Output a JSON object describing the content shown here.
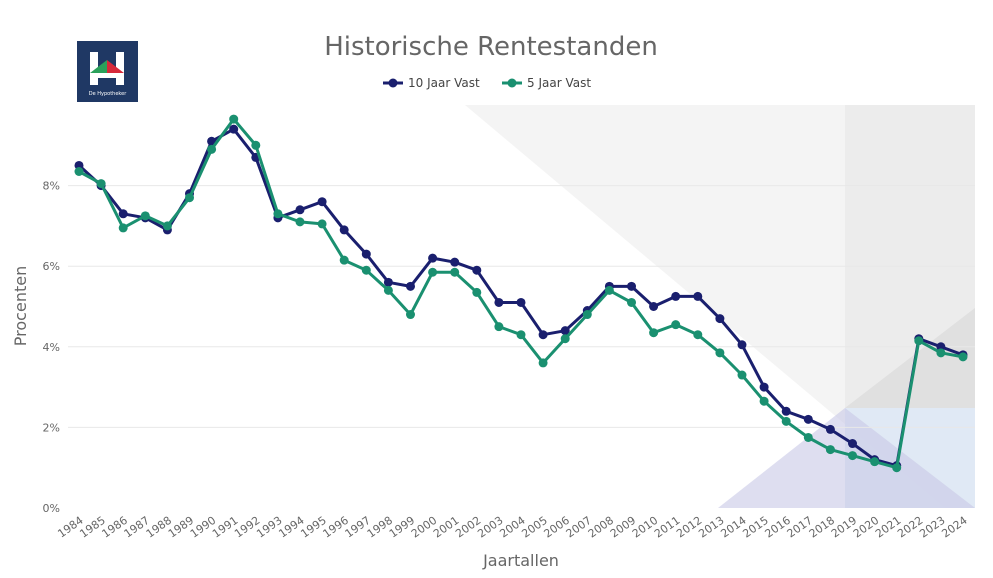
{
  "logo": {
    "caption": "De Hypotheker",
    "background": "#1f3864"
  },
  "chart_data": {
    "type": "line",
    "title": "Historische Rentestanden",
    "xlabel": "Jaartallen",
    "ylabel": "Procenten",
    "x": [
      1984,
      1985,
      1986,
      1987,
      1988,
      1989,
      1990,
      1991,
      1992,
      1993,
      1994,
      1995,
      1996,
      1997,
      1998,
      1999,
      2000,
      2001,
      2002,
      2003,
      2004,
      2005,
      2006,
      2007,
      2008,
      2009,
      2010,
      2011,
      2012,
      2013,
      2014,
      2015,
      2016,
      2017,
      2018,
      2019,
      2020,
      2021,
      2022,
      2023,
      2024
    ],
    "ylim": [
      0,
      10
    ],
    "yticks": [
      {
        "value": 0,
        "label": "0%"
      },
      {
        "value": 2,
        "label": "2%"
      },
      {
        "value": 4,
        "label": "4%"
      },
      {
        "value": 6,
        "label": "6%"
      },
      {
        "value": 8,
        "label": "8%"
      }
    ],
    "legend_position": "top-center",
    "grid": true,
    "series": [
      {
        "name": "10 Jaar Vast",
        "color": "#1a1f6e",
        "values": [
          8.5,
          8.0,
          7.3,
          7.2,
          6.9,
          7.8,
          9.1,
          9.4,
          8.7,
          7.2,
          7.4,
          7.6,
          6.9,
          6.3,
          5.6,
          5.5,
          6.2,
          6.1,
          5.9,
          5.1,
          5.1,
          4.3,
          4.4,
          4.9,
          5.5,
          5.5,
          5.0,
          5.25,
          5.25,
          4.7,
          4.05,
          3.0,
          2.4,
          2.2,
          1.95,
          1.6,
          1.2,
          1.05,
          4.2,
          4.0,
          3.8
        ]
      },
      {
        "name": "5 Jaar Vast",
        "color": "#1a9070",
        "values": [
          8.35,
          8.05,
          6.95,
          7.25,
          7.0,
          7.7,
          8.9,
          9.65,
          9.0,
          7.3,
          7.1,
          7.05,
          6.15,
          5.9,
          5.4,
          4.8,
          5.85,
          5.85,
          5.35,
          4.5,
          4.3,
          3.6,
          4.2,
          4.8,
          5.4,
          5.1,
          4.35,
          4.55,
          4.3,
          3.85,
          3.3,
          2.65,
          2.15,
          1.75,
          1.45,
          1.3,
          1.15,
          1.0,
          4.15,
          3.85,
          3.75
        ]
      }
    ]
  }
}
